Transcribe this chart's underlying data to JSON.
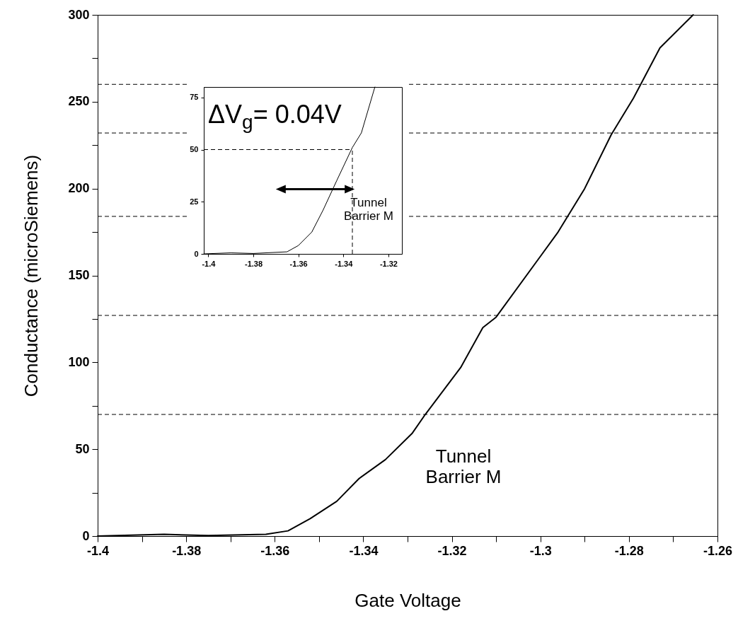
{
  "chart_data": [
    {
      "type": "line",
      "xlabel": "Gate Voltage",
      "ylabel": "Conductance (microSiemens)",
      "series": [
        {
          "color": "#000000",
          "x": [
            -1.4,
            -1.385,
            -1.375,
            -1.362,
            -1.357,
            -1.352,
            -1.346,
            -1.341,
            -1.335,
            -1.329,
            -1.326,
            -1.318,
            -1.313,
            -1.31,
            -1.296,
            -1.29,
            -1.284,
            -1.279,
            -1.273,
            -1.2655
          ],
          "values": [
            0,
            1,
            0.3,
            1,
            3,
            10,
            20,
            33,
            44,
            59,
            70,
            97,
            120,
            126,
            175,
            200,
            231,
            252,
            281,
            300
          ]
        }
      ],
      "xlim": [
        -1.4,
        -1.26
      ],
      "ylim": [
        0,
        300
      ],
      "xticks": [
        -1.4,
        {
          "value": -1.39,
          "label": null
        },
        -1.38,
        {
          "value": -1.37,
          "label": null
        },
        -1.36,
        {
          "value": -1.35,
          "label": null
        },
        -1.34,
        {
          "value": -1.33,
          "label": null
        },
        -1.32,
        {
          "value": -1.31,
          "label": null
        },
        -1.3,
        {
          "value": -1.29,
          "label": null
        },
        -1.28,
        {
          "value": -1.27,
          "label": null
        },
        -1.26
      ],
      "yticks": [
        0,
        {
          "value": 25,
          "label": null
        },
        50,
        {
          "value": 75,
          "label": null
        },
        100,
        {
          "value": 125,
          "label": null
        },
        150,
        {
          "value": 175,
          "label": null
        },
        200,
        {
          "value": 225,
          "label": null
        },
        250,
        {
          "value": 275,
          "label": null
        },
        300
      ],
      "ref_lines": [
        {
          "axis": "y",
          "value": 70,
          "line_style": "dashed"
        },
        {
          "axis": "y",
          "value": 127,
          "line_style": "dashed"
        },
        {
          "axis": "y",
          "value": 184,
          "line_style": "dashed"
        },
        {
          "axis": "y",
          "value": 232,
          "line_style": "dashed"
        },
        {
          "axis": "y",
          "value": 260,
          "line_style": "dashed"
        }
      ],
      "annotations": [
        "Tunnel\nBarrier M"
      ],
      "grid": false,
      "marker": "none",
      "line_style": "solid"
    },
    {
      "type": "line",
      "series": [
        {
          "color": "#000000",
          "x": [
            -1.402,
            -1.39,
            -1.38,
            -1.365,
            -1.36,
            -1.354,
            -1.349,
            -1.343,
            -1.336,
            -1.332,
            -1.326
          ],
          "values": [
            0,
            0.5,
            0.2,
            1,
            4,
            10.5,
            21,
            35,
            51,
            58,
            80
          ]
        }
      ],
      "xlim": [
        -1.402,
        -1.314
      ],
      "ylim": [
        0,
        80
      ],
      "xticks": [
        -1.4,
        -1.38,
        -1.36,
        -1.34,
        -1.32
      ],
      "yticks": [
        0,
        25,
        50,
        75
      ],
      "ref_lines": [
        {
          "axis": "y",
          "value": 50,
          "line_style": "dashed"
        },
        {
          "axis": "x",
          "value": -1.336,
          "line_style": "dashed"
        }
      ],
      "annotations": [
        "ΔV$_{g}$= 0.04V",
        "Tunnel\nBarrier M"
      ],
      "grid": false,
      "marker": "none",
      "line_style": "solid"
    }
  ]
}
